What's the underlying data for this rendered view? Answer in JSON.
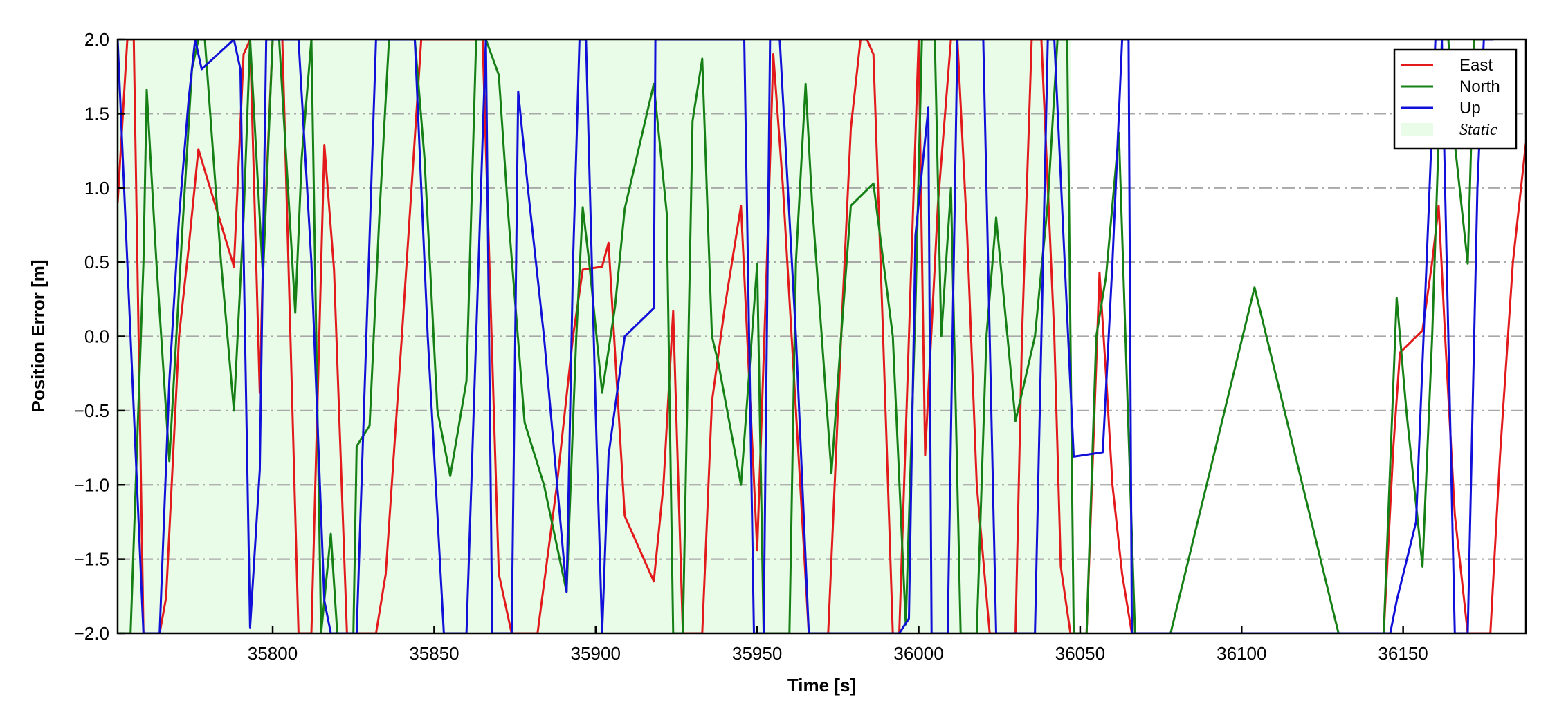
{
  "chart_data": {
    "type": "line",
    "title": "",
    "xlabel": "Time [s]",
    "ylabel": "Position Error [m]",
    "xlim": [
      35752,
      36188
    ],
    "ylim": [
      -2.0,
      2.0
    ],
    "xticks": [
      35800,
      35850,
      35900,
      35950,
      36000,
      36050,
      36100,
      36150
    ],
    "xtick_labels": [
      "35800",
      "35850",
      "35900",
      "35950",
      "36000",
      "36050",
      "36100",
      "36150"
    ],
    "yticks": [
      -2.0,
      -1.5,
      -1.0,
      -0.5,
      0.0,
      0.5,
      1.0,
      1.5,
      2.0
    ],
    "ytick_labels": [
      "−2.0",
      "−1.5",
      "−1.0",
      "−0.5",
      "0.0",
      "0.5",
      "1.0",
      "1.5",
      "2.0"
    ],
    "grid": "horizontal dash-dot",
    "legend_position": "top-right",
    "shaded_regions": [
      {
        "name": "Static",
        "x": [
          35752,
          36047
        ],
        "color": "#e8fce8"
      }
    ],
    "series": [
      {
        "name": "East",
        "color": "#e31a1c",
        "points": [
          [
            35752,
            0.9
          ],
          [
            35755,
            2.0
          ],
          [
            35757,
            2.0
          ],
          [
            35760,
            -2.0
          ],
          [
            35762,
            -2.0
          ],
          [
            35765,
            -2.0
          ],
          [
            35767,
            -1.76
          ],
          [
            35771,
            0.0
          ],
          [
            35774,
            0.6
          ],
          [
            35777,
            1.26
          ],
          [
            35788,
            0.47
          ],
          [
            35791,
            1.9
          ],
          [
            35793,
            2.0
          ],
          [
            35796,
            -0.38
          ],
          [
            35797,
            0.5
          ],
          [
            35800,
            2.0
          ],
          [
            35803,
            2.0
          ],
          [
            35808,
            -2.0
          ],
          [
            35812,
            -2.0
          ],
          [
            35816,
            1.29
          ],
          [
            35819,
            0.45
          ],
          [
            35823,
            -2.0
          ],
          [
            35832,
            -2.0
          ],
          [
            35835,
            -1.6
          ],
          [
            35840,
            0.0
          ],
          [
            35846,
            2.0
          ],
          [
            35848,
            2.0
          ],
          [
            35862,
            2.0
          ],
          [
            35865,
            2.0
          ],
          [
            35870,
            -1.6
          ],
          [
            35874,
            -2.0
          ],
          [
            35882,
            -2.0
          ],
          [
            35888,
            -1.0
          ],
          [
            35893,
            0.0
          ],
          [
            35896,
            0.45
          ],
          [
            35902,
            0.47
          ],
          [
            35904,
            0.63
          ],
          [
            35909,
            -1.21
          ],
          [
            35918,
            -1.65
          ],
          [
            35921,
            -1.0
          ],
          [
            35924,
            0.17
          ],
          [
            35927,
            -2.0
          ],
          [
            35933,
            -2.0
          ],
          [
            35936,
            -0.44
          ],
          [
            35940,
            0.2
          ],
          [
            35945,
            0.88
          ],
          [
            35948,
            -0.5
          ],
          [
            35950,
            -1.44
          ],
          [
            35953,
            0.5
          ],
          [
            35955,
            1.9
          ],
          [
            35958,
            1.0
          ],
          [
            35962,
            -0.5
          ],
          [
            35966,
            -2.0
          ],
          [
            35972,
            -2.0
          ],
          [
            35976,
            0.0
          ],
          [
            35979,
            1.4
          ],
          [
            35982,
            2.0
          ],
          [
            35984,
            2.0
          ],
          [
            35986,
            1.9
          ],
          [
            35989,
            0.0
          ],
          [
            35992,
            -2.0
          ],
          [
            35994,
            -2.0
          ],
          [
            35997,
            0.0
          ],
          [
            36000,
            2.0
          ],
          [
            36002,
            -0.8
          ],
          [
            36006,
            0.9
          ],
          [
            36010,
            2.0
          ],
          [
            36012,
            2.0
          ],
          [
            36015,
            0.7
          ],
          [
            36018,
            -1.0
          ],
          [
            36022,
            -2.0
          ],
          [
            36030,
            -2.0
          ],
          [
            36032,
            0.0
          ],
          [
            36035,
            2.0
          ],
          [
            36038,
            2.0
          ],
          [
            36042,
            0.0
          ],
          [
            36044,
            -1.55
          ],
          [
            36047,
            -2.0
          ],
          [
            36052,
            -2.0
          ],
          [
            36056,
            0.43
          ],
          [
            36058,
            -0.25
          ],
          [
            36060,
            -1.0
          ],
          [
            36063,
            -1.6
          ],
          [
            36066,
            -2.0
          ],
          [
            36144,
            -2.0
          ],
          [
            36147,
            -0.74
          ],
          [
            36149,
            -0.11
          ],
          [
            36156,
            0.04
          ],
          [
            36159,
            0.5
          ],
          [
            36161,
            0.88
          ],
          [
            36163,
            0.0
          ],
          [
            36166,
            -1.2
          ],
          [
            36170,
            -2.0
          ],
          [
            36177,
            -2.0
          ],
          [
            36180,
            -0.8
          ],
          [
            36184,
            0.5
          ],
          [
            36188,
            1.3
          ]
        ]
      },
      {
        "name": "North",
        "color": "#168016",
        "points": [
          [
            35752,
            -2.0
          ],
          [
            35756,
            -2.0
          ],
          [
            35760,
            0.5
          ],
          [
            35761,
            1.66
          ],
          [
            35764,
            0.5
          ],
          [
            35768,
            -0.84
          ],
          [
            35772,
            0.7
          ],
          [
            35775,
            1.8
          ],
          [
            35777,
            2.0
          ],
          [
            35779,
            2.0
          ],
          [
            35784,
            0.5
          ],
          [
            35788,
            -0.5
          ],
          [
            35791,
            0.8
          ],
          [
            35793,
            2.0
          ],
          [
            35797,
            0.4
          ],
          [
            35800,
            2.0
          ],
          [
            35802,
            2.0
          ],
          [
            35805,
            0.9
          ],
          [
            35807,
            0.16
          ],
          [
            35809,
            1.2
          ],
          [
            35812,
            2.0
          ],
          [
            35815,
            -2.0
          ],
          [
            35818,
            -1.33
          ],
          [
            35820,
            -2.0
          ],
          [
            35825,
            -2.0
          ],
          [
            35826,
            -0.74
          ],
          [
            35830,
            -0.6
          ],
          [
            35833,
            0.8
          ],
          [
            35836,
            2.0
          ],
          [
            35838,
            2.0
          ],
          [
            35844,
            2.0
          ],
          [
            35847,
            1.2
          ],
          [
            35851,
            -0.5
          ],
          [
            35855,
            -0.94
          ],
          [
            35860,
            -0.3
          ],
          [
            35863,
            2.0
          ],
          [
            35866,
            2.0
          ],
          [
            35870,
            1.76
          ],
          [
            35873,
            0.8
          ],
          [
            35878,
            -0.58
          ],
          [
            35884,
            -1.0
          ],
          [
            35891,
            -1.72
          ],
          [
            35894,
            0.0
          ],
          [
            35896,
            0.87
          ],
          [
            35898,
            0.5
          ],
          [
            35902,
            -0.38
          ],
          [
            35906,
            0.2
          ],
          [
            35909,
            0.86
          ],
          [
            35918,
            1.7
          ],
          [
            35922,
            0.83
          ],
          [
            35924,
            -2.0
          ],
          [
            35927,
            -2.0
          ],
          [
            35930,
            1.45
          ],
          [
            35933,
            1.87
          ],
          [
            35936,
            0.0
          ],
          [
            35938,
            -0.18
          ],
          [
            35945,
            -1.0
          ],
          [
            35950,
            0.49
          ],
          [
            35952,
            -2.0
          ],
          [
            35960,
            -2.0
          ],
          [
            35962,
            0.5
          ],
          [
            35965,
            1.7
          ],
          [
            35967,
            0.9
          ],
          [
            35970,
            0.0
          ],
          [
            35973,
            -0.92
          ],
          [
            35976,
            0.0
          ],
          [
            35979,
            0.88
          ],
          [
            35986,
            1.03
          ],
          [
            35992,
            0.0
          ],
          [
            35996,
            -1.94
          ],
          [
            35999,
            0.2
          ],
          [
            36001,
            2.0
          ],
          [
            36002,
            2.0
          ],
          [
            36005,
            2.0
          ],
          [
            36007,
            0.0
          ],
          [
            36010,
            1.0
          ],
          [
            36013,
            -2.0
          ],
          [
            36018,
            -2.0
          ],
          [
            36021,
            0.0
          ],
          [
            36024,
            0.8
          ],
          [
            36030,
            -0.57
          ],
          [
            36036,
            0.0
          ],
          [
            36040,
            0.9
          ],
          [
            36043,
            2.0
          ],
          [
            36046,
            2.0
          ],
          [
            36048,
            -2.0
          ],
          [
            36052,
            -2.0
          ],
          [
            36055,
            0.0
          ],
          [
            36058,
            0.4
          ],
          [
            36062,
            1.37
          ],
          [
            36067,
            -2.0
          ],
          [
            36078,
            -2.0
          ],
          [
            36104,
            0.33
          ],
          [
            36130,
            -2.0
          ],
          [
            36144,
            -2.0
          ],
          [
            36148,
            0.26
          ],
          [
            36151,
            -0.5
          ],
          [
            36156,
            -1.55
          ],
          [
            36159,
            0.0
          ],
          [
            36162,
            2.0
          ],
          [
            36164,
            2.0
          ],
          [
            36166,
            1.3
          ],
          [
            36170,
            0.49
          ],
          [
            36172,
            2.0
          ],
          [
            36175,
            2.0
          ]
        ]
      },
      {
        "name": "Up",
        "color": "#1010d8",
        "points": [
          [
            35752,
            2.0
          ],
          [
            35760,
            -2.0
          ],
          [
            35765,
            -2.0
          ],
          [
            35768,
            -0.3
          ],
          [
            35771,
            0.8
          ],
          [
            35774,
            1.6
          ],
          [
            35776,
            2.0
          ],
          [
            35778,
            1.8
          ],
          [
            35788,
            2.0
          ],
          [
            35790,
            1.8
          ],
          [
            35793,
            -1.96
          ],
          [
            35796,
            -0.9
          ],
          [
            35798,
            2.0
          ],
          [
            35802,
            2.0
          ],
          [
            35808,
            2.0
          ],
          [
            35812,
            0.5
          ],
          [
            35816,
            -1.78
          ],
          [
            35818,
            -2.0
          ],
          [
            35822,
            -2.0
          ],
          [
            35826,
            -2.0
          ],
          [
            35832,
            2.0
          ],
          [
            35836,
            2.0
          ],
          [
            35844,
            2.0
          ],
          [
            35848,
            0.0
          ],
          [
            35853,
            -2.0
          ],
          [
            35860,
            -2.0
          ],
          [
            35866,
            2.0
          ],
          [
            35868,
            -2.0
          ],
          [
            35874,
            -2.0
          ],
          [
            35876,
            1.65
          ],
          [
            35879,
            1.0
          ],
          [
            35884,
            0.0
          ],
          [
            35891,
            -1.72
          ],
          [
            35893,
            0.5
          ],
          [
            35895,
            2.0
          ],
          [
            35897,
            2.0
          ],
          [
            35900,
            -0.5
          ],
          [
            35902,
            -2.0
          ],
          [
            35904,
            -0.8
          ],
          [
            35909,
            0.0
          ],
          [
            35918,
            0.19
          ],
          [
            35918.5,
            2.0
          ],
          [
            35946,
            2.0
          ],
          [
            35949,
            -2.0
          ],
          [
            35952,
            -2.0
          ],
          [
            35954,
            2.0
          ],
          [
            35957,
            2.0
          ],
          [
            35962,
            0.0
          ],
          [
            35966,
            -2.0
          ],
          [
            35994,
            -2.0
          ],
          [
            35997,
            -1.9
          ],
          [
            35999,
            0.68
          ],
          [
            36003,
            1.54
          ],
          [
            36004,
            -2.0
          ],
          [
            36009,
            -2.0
          ],
          [
            36012,
            2.0
          ],
          [
            36014,
            2.0
          ],
          [
            36020,
            2.0
          ],
          [
            36024,
            -2.0
          ],
          [
            36036,
            -2.0
          ],
          [
            36040,
            2.0
          ],
          [
            36042,
            2.0
          ],
          [
            36048,
            -0.81
          ],
          [
            36057,
            -0.78
          ],
          [
            36060,
            0.5
          ],
          [
            36063,
            2.0
          ],
          [
            36065,
            2.0
          ],
          [
            36066,
            -2.0
          ],
          [
            36146,
            -2.0
          ],
          [
            36148,
            -1.78
          ],
          [
            36154,
            -1.25
          ],
          [
            36158,
            0.9
          ],
          [
            36160,
            2.0
          ],
          [
            36162,
            2.0
          ],
          [
            36166,
            -2.0
          ],
          [
            36170,
            -2.0
          ],
          [
            36173,
            1.0
          ],
          [
            36175,
            2.0
          ],
          [
            36178,
            2.0
          ]
        ]
      }
    ]
  }
}
